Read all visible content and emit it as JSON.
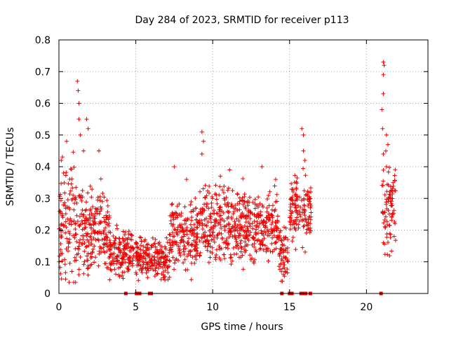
{
  "chart_data": {
    "type": "scatter",
    "title": "Day 284 of 2023, SRMTID for receiver p113",
    "xlabel": "GPS time / hours",
    "ylabel": "SRMTID / TECUs",
    "xlim": [
      0,
      24
    ],
    "ylim": [
      0,
      0.8
    ],
    "xticks": [
      "0",
      "5",
      "10",
      "15",
      "20"
    ],
    "yticks": [
      "0",
      "0.1",
      "0.2",
      "0.3",
      "0.4",
      "0.5",
      "0.6",
      "0.7",
      "0.8"
    ],
    "grid": true,
    "marker": "plus",
    "color": "#ee0000",
    "series": [
      {
        "name": "SRMTID",
        "clusters": [
          {
            "t_start": 0.0,
            "t_end": 1.1,
            "base": 0.22,
            "spread": 0.14
          },
          {
            "t_start": 1.1,
            "t_end": 2.2,
            "base": 0.2,
            "spread": 0.1
          },
          {
            "t_start": 2.2,
            "t_end": 3.3,
            "base": 0.2,
            "spread": 0.09
          },
          {
            "t_start": 3.3,
            "t_end": 4.9,
            "base": 0.13,
            "spread": 0.05
          },
          {
            "t_start": 5.0,
            "t_end": 7.2,
            "base": 0.11,
            "spread": 0.05
          },
          {
            "t_start": 7.2,
            "t_end": 9.0,
            "base": 0.17,
            "spread": 0.08
          },
          {
            "t_start": 9.0,
            "t_end": 12.0,
            "base": 0.22,
            "spread": 0.09
          },
          {
            "t_start": 12.0,
            "t_end": 14.3,
            "base": 0.21,
            "spread": 0.08
          },
          {
            "t_start": 14.3,
            "t_end": 14.9,
            "base": 0.12,
            "spread": 0.07
          },
          {
            "t_start": 15.0,
            "t_end": 16.4,
            "base": 0.27,
            "spread": 0.08
          },
          {
            "t_start": 21.0,
            "t_end": 21.9,
            "base": 0.27,
            "spread": 0.1
          }
        ],
        "extremes": [
          {
            "x": 0.15,
            "y": 0.42
          },
          {
            "x": 0.3,
            "y": 0.38
          },
          {
            "x": 0.5,
            "y": 0.48
          },
          {
            "x": 1.2,
            "y": 0.67
          },
          {
            "x": 1.25,
            "y": 0.64
          },
          {
            "x": 1.3,
            "y": 0.6
          },
          {
            "x": 1.3,
            "y": 0.55
          },
          {
            "x": 1.4,
            "y": 0.5
          },
          {
            "x": 1.6,
            "y": 0.45
          },
          {
            "x": 1.8,
            "y": 0.55
          },
          {
            "x": 1.9,
            "y": 0.52
          },
          {
            "x": 2.6,
            "y": 0.45
          },
          {
            "x": 7.5,
            "y": 0.4
          },
          {
            "x": 8.3,
            "y": 0.36
          },
          {
            "x": 9.3,
            "y": 0.51
          },
          {
            "x": 9.4,
            "y": 0.48
          },
          {
            "x": 9.3,
            "y": 0.44
          },
          {
            "x": 10.5,
            "y": 0.37
          },
          {
            "x": 11.1,
            "y": 0.39
          },
          {
            "x": 13.2,
            "y": 0.4
          },
          {
            "x": 14.1,
            "y": 0.36
          },
          {
            "x": 14.6,
            "y": 0.06
          },
          {
            "x": 15.8,
            "y": 0.52
          },
          {
            "x": 15.9,
            "y": 0.5
          },
          {
            "x": 15.9,
            "y": 0.45
          },
          {
            "x": 16.0,
            "y": 0.42
          },
          {
            "x": 21.1,
            "y": 0.73
          },
          {
            "x": 21.15,
            "y": 0.72
          },
          {
            "x": 21.1,
            "y": 0.69
          },
          {
            "x": 21.1,
            "y": 0.63
          },
          {
            "x": 21.0,
            "y": 0.58
          },
          {
            "x": 21.05,
            "y": 0.52
          },
          {
            "x": 21.3,
            "y": 0.5
          },
          {
            "x": 21.4,
            "y": 0.47
          },
          {
            "x": 21.1,
            "y": 0.44
          },
          {
            "x": 21.3,
            "y": 0.4
          },
          {
            "x": 21.1,
            "y": 0.16
          },
          {
            "x": 21.8,
            "y": 0.18
          }
        ]
      },
      {
        "name": "zero-markers",
        "marker": "square",
        "x": [
          4.35,
          5.05,
          5.25,
          5.9,
          6.0,
          14.5,
          15.0,
          15.15,
          15.75,
          15.95,
          16.05,
          16.35,
          20.95
        ]
      }
    ]
  }
}
